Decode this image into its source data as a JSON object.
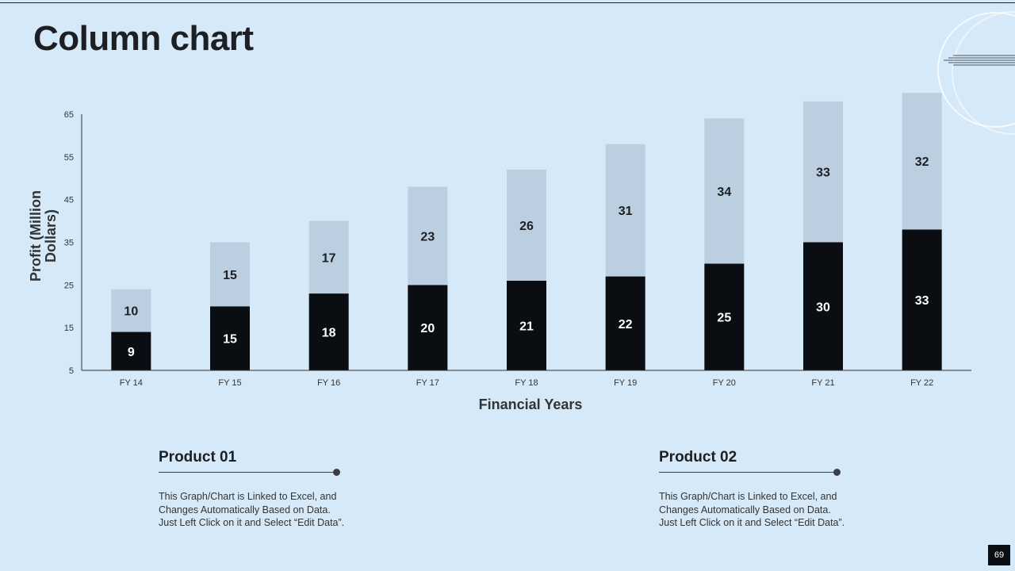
{
  "slide": {
    "title": "Column chart",
    "page_number": "69"
  },
  "products": [
    {
      "title": "Product 01",
      "description": "This Graph/Chart is Linked to Excel, and\nChanges Automatically Based on Data.\nJust Left Click on it and Select “Edit Data”."
    },
    {
      "title": "Product 02",
      "description": "This Graph/Chart is Linked to Excel, and\nChanges Automatically Based on Data.\nJust Left Click on it and Select “Edit Data”."
    }
  ],
  "chart_data": {
    "type": "bar",
    "stacked": true,
    "title": "",
    "xlabel": "Financial Years",
    "ylabel": "Profit  (Million Dollars)",
    "ylim": [
      5,
      65
    ],
    "yticks": [
      5,
      15,
      25,
      35,
      45,
      55,
      65
    ],
    "grid": false,
    "legend": "none",
    "categories": [
      "FY 14",
      "FY 15",
      "FY 16",
      "FY 17",
      "FY 18",
      "FY 19",
      "FY 20",
      "FY 21",
      "FY 22"
    ],
    "series": [
      {
        "values": [
          9,
          15,
          18,
          20,
          21,
          22,
          25,
          30,
          33
        ],
        "color": "#0a0d12",
        "label_color": "#ffffff"
      },
      {
        "values": [
          10,
          15,
          17,
          23,
          26,
          31,
          34,
          33,
          32
        ],
        "color": "#bccfe0",
        "label_color": "#1c1f24"
      }
    ]
  }
}
